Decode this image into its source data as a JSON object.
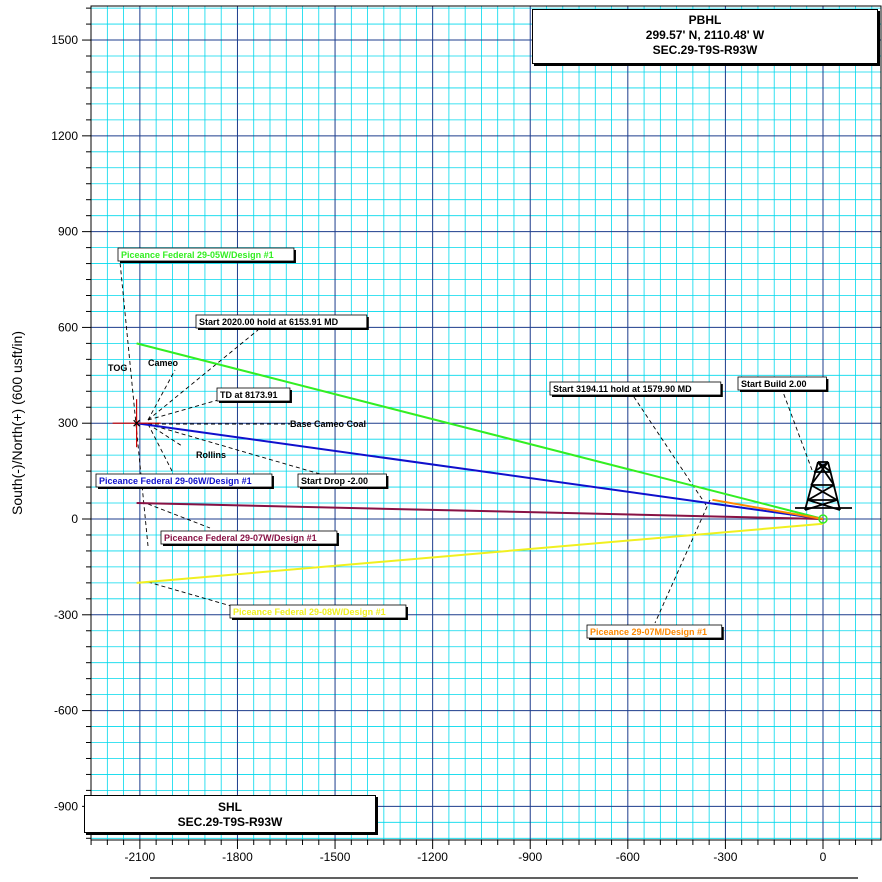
{
  "chart_data": {
    "type": "line",
    "ylabel": "South(-)/North(+) (600 usft/in)",
    "xlim": [
      -2320,
      180
    ],
    "ylim": [
      -1000,
      1640
    ],
    "x_ticks": [
      -2100,
      -1800,
      -1500,
      -1200,
      -900,
      -600,
      -300,
      0
    ],
    "y_ticks": [
      -900,
      -600,
      -300,
      0,
      300,
      600,
      900,
      1200,
      1500
    ],
    "grid": true,
    "series": [
      {
        "name": "Piceance Federal 29-05W/Design #1",
        "color": "#33ee22",
        "points": [
          [
            0,
            0
          ],
          [
            -2110,
            550
          ]
        ]
      },
      {
        "name": "Piceance Federal 29-06W/Design #1",
        "color": "#1010cc",
        "points": [
          [
            0,
            0
          ],
          [
            -2110,
            300
          ]
        ]
      },
      {
        "name": "Piceance Federal 29-07W/Design #1",
        "color": "#881144",
        "points": [
          [
            0,
            0
          ],
          [
            -2110,
            50
          ]
        ]
      },
      {
        "name": "Piceance Federal 29-08W/Design #1",
        "color": "#f0f020",
        "points": [
          [
            0,
            -15
          ],
          [
            -2110,
            -200
          ]
        ]
      },
      {
        "name": "Piceance 29-07M/Design #1",
        "color": "#ff8800",
        "points": [
          [
            0,
            0
          ],
          [
            -340,
            60
          ]
        ]
      }
    ],
    "annotations": {
      "start_hold_1": "Start 2020.00 hold at 6153.91 MD",
      "start_hold_2": "Start 3194.11 hold at 1579.90 MD",
      "td": "TD at 8173.91",
      "start_build": "Start Build 2.00",
      "start_drop": "Start Drop -2.00",
      "tog": "TOG",
      "cameo": "Cameo",
      "base_cameo_coal": "Base Cameo Coal",
      "rollins": "Rollins"
    },
    "pbhl": {
      "title": "PBHL",
      "coords": "299.57' N, 2110.48' W",
      "section": "SEC.29-T9S-R93W"
    },
    "shl": {
      "title": "SHL",
      "section": "SEC.29-T9S-R93W"
    }
  }
}
